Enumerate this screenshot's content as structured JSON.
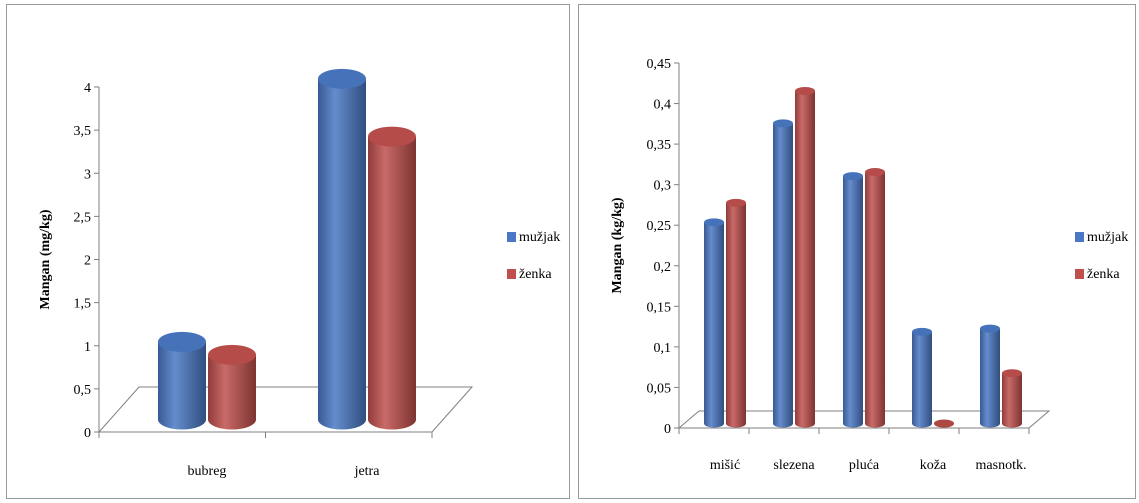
{
  "chart_data": [
    {
      "type": "bar",
      "ylabel": "Mangan (mg/kg)",
      "ylim": [
        0,
        4
      ],
      "yticks": [
        "0",
        "0,5",
        "1",
        "1,5",
        "2",
        "2,5",
        "3",
        "3,5",
        "4"
      ],
      "categories": [
        "bubreg",
        "jetra"
      ],
      "series": [
        {
          "name": "mužjak",
          "values": [
            0.9,
            3.95
          ]
        },
        {
          "name": "ženka",
          "values": [
            0.75,
            3.28
          ]
        }
      ],
      "legend": "right",
      "grid": false,
      "style": "3d-cylinder"
    },
    {
      "type": "bar",
      "ylabel": "Mangan (kg/kg)",
      "ylim": [
        0,
        0.45
      ],
      "yticks": [
        "0",
        "0,05",
        "0,1",
        "0,15",
        "0,2",
        "0,25",
        "0,3",
        "0,35",
        "0,4",
        "0,45"
      ],
      "categories": [
        "mišić",
        "slezena",
        "pluća",
        "koža",
        "masnotk."
      ],
      "series": [
        {
          "name": "mužjak",
          "values": [
            0.248,
            0.37,
            0.305,
            0.113,
            0.117
          ]
        },
        {
          "name": "ženka",
          "values": [
            0.272,
            0.41,
            0.31,
            0.0,
            0.062
          ]
        }
      ],
      "legend": "right",
      "grid": false,
      "style": "3d-cylinder"
    }
  ],
  "colors": {
    "mužjak": "#4a78c4",
    "ženka": "#c0504d"
  }
}
